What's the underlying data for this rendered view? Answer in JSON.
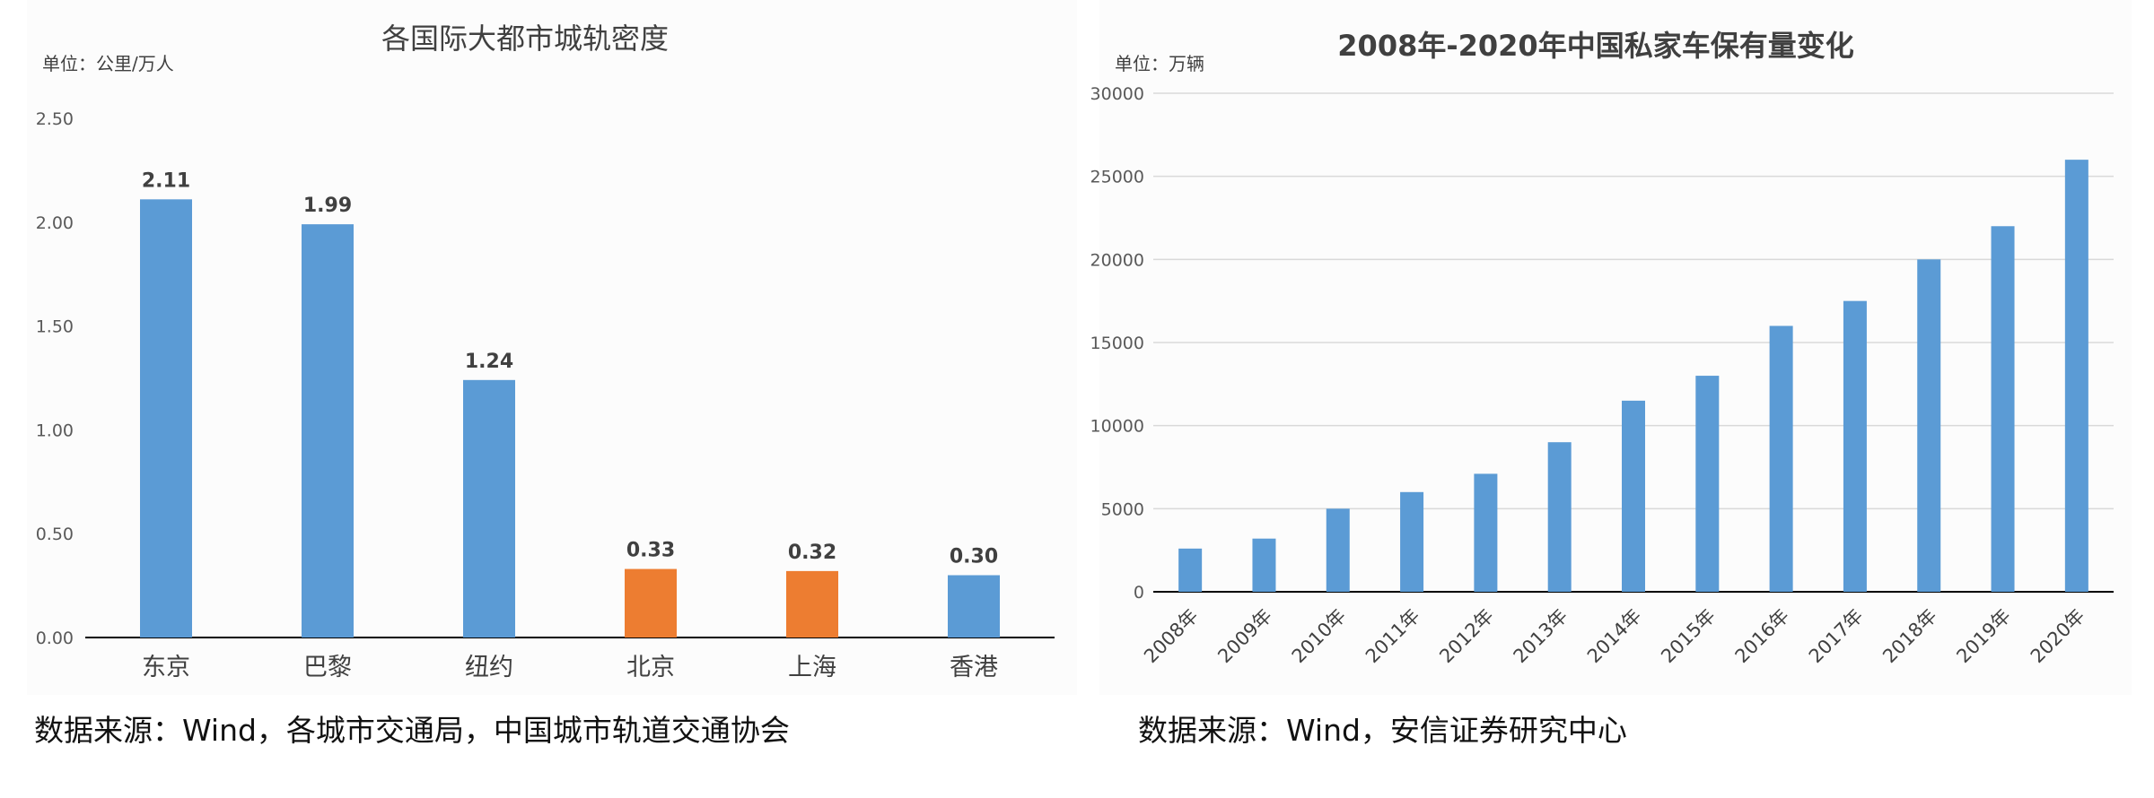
{
  "chart_data": [
    {
      "type": "bar",
      "title": "各国际大都市城轨密度",
      "unit_label": "单位：公里/万人",
      "categories": [
        "东京",
        "巴黎",
        "纽约",
        "北京",
        "上海",
        "香港"
      ],
      "values": [
        2.11,
        1.99,
        1.24,
        0.33,
        0.32,
        0.3
      ],
      "data_labels": [
        "2.11",
        "1.99",
        "1.24",
        "0.33",
        "0.32",
        "0.30"
      ],
      "ylim": [
        0,
        2.5
      ],
      "yticks": [
        "0.00",
        "0.50",
        "1.00",
        "1.50",
        "2.00",
        "2.50"
      ],
      "gridlines": false,
      "colors": {
        "default": "#5b9bd5",
        "highlight": "#ed7d31"
      },
      "highlighted_categories": [
        "北京",
        "上海"
      ]
    },
    {
      "type": "bar",
      "title": "2008年-2020年中国私家车保有量变化",
      "unit_label": "单位：万辆",
      "categories": [
        "2008年",
        "2009年",
        "2010年",
        "2011年",
        "2012年",
        "2013年",
        "2014年",
        "2015年",
        "2016年",
        "2017年",
        "2018年",
        "2019年",
        "2020年"
      ],
      "values": [
        2600,
        3200,
        5000,
        6000,
        7100,
        9000,
        11500,
        13000,
        16000,
        17500,
        20000,
        22000,
        26000
      ],
      "ylim": [
        0,
        30000
      ],
      "yticks": [
        "0",
        "5000",
        "10000",
        "15000",
        "20000",
        "25000",
        "30000"
      ],
      "gridlines": true,
      "colors": {
        "default": "#5b9bd5"
      }
    }
  ],
  "sources": {
    "left": "数据来源：Wind，各城市交通局，中国城市轨道交通协会",
    "right": "数据来源：Wind，安信证券研究中心"
  }
}
